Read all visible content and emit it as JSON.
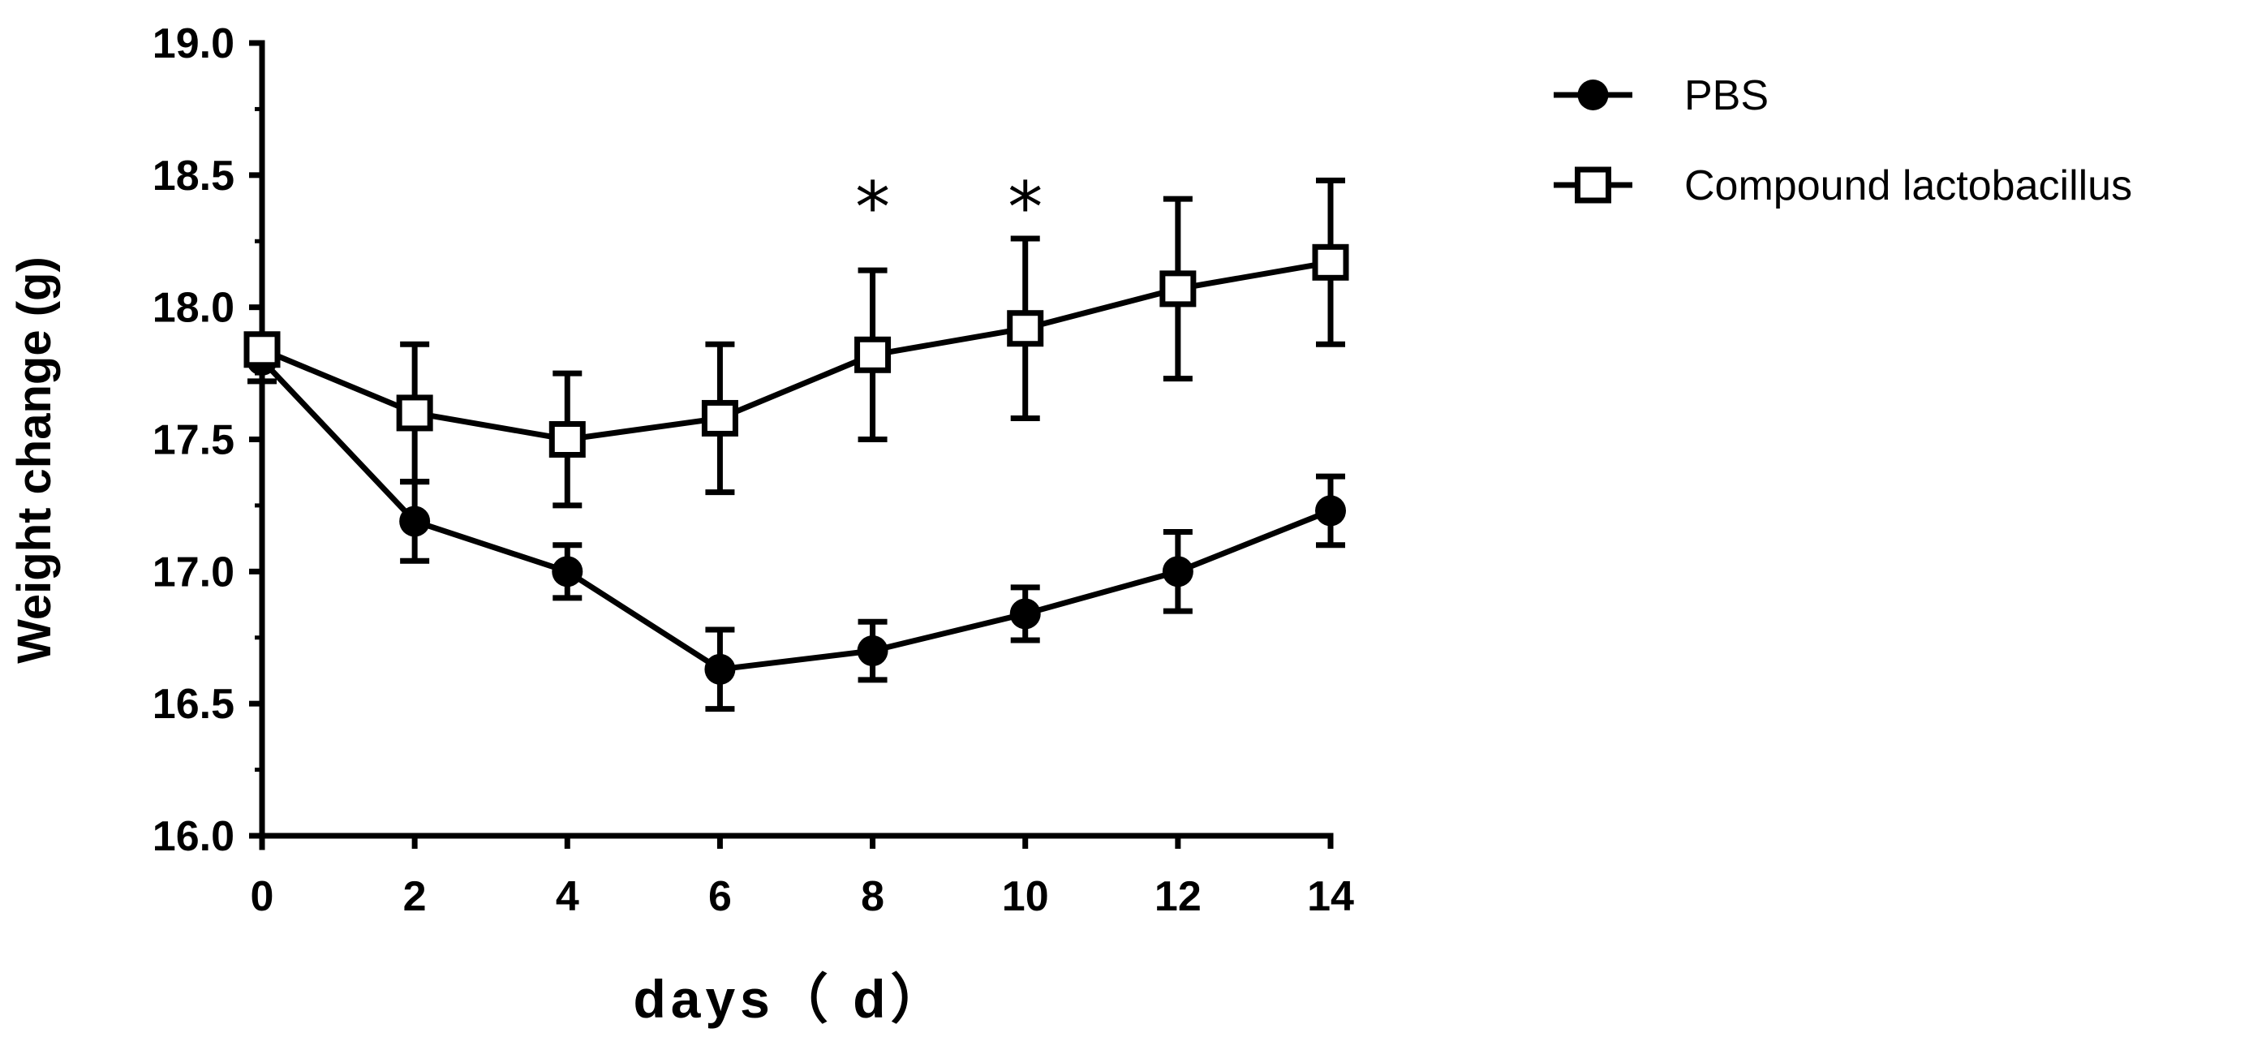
{
  "chart_data": {
    "type": "line",
    "xlabel": "days（ d）",
    "ylabel": "Weight change (g)",
    "x": [
      0,
      2,
      4,
      6,
      8,
      10,
      12,
      14
    ],
    "xticks": [
      "0",
      "2",
      "4",
      "6",
      "8",
      "10",
      "12",
      "14"
    ],
    "xlim": [
      0,
      14
    ],
    "yticks": [
      "16.0",
      "16.5",
      "17.0",
      "17.5",
      "18.0",
      "18.5",
      "19.0"
    ],
    "ylim": [
      16.0,
      19.0
    ],
    "grid": false,
    "legend_position": "top-right",
    "series": [
      {
        "name": "PBS",
        "marker": "filled-circle",
        "color": "#000000",
        "values": [
          17.8,
          17.19,
          17.0,
          16.63,
          16.7,
          16.84,
          17.0,
          17.23
        ],
        "error": [
          0.08,
          0.15,
          0.1,
          0.15,
          0.11,
          0.1,
          0.15,
          0.13
        ]
      },
      {
        "name": "Compound lactobacillus",
        "marker": "open-square",
        "color": "#000000",
        "values": [
          17.84,
          17.6,
          17.5,
          17.58,
          17.82,
          17.92,
          18.07,
          18.17
        ],
        "error": [
          0.05,
          0.26,
          0.25,
          0.28,
          0.32,
          0.34,
          0.34,
          0.31
        ]
      }
    ],
    "annotations": [
      {
        "text": "*",
        "x": 8
      },
      {
        "text": "*",
        "x": 10
      }
    ]
  }
}
